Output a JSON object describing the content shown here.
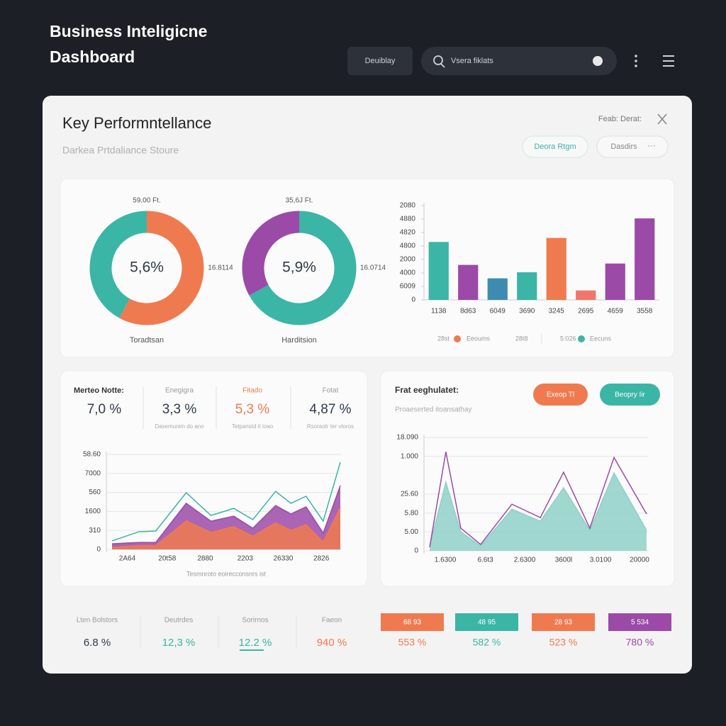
{
  "header": {
    "title_lines": [
      "Business Inteligicne",
      "Dashboard"
    ],
    "button": "Deuiblay",
    "search": "Vsera fiklats"
  },
  "panel": {
    "title": "Key Performntellance",
    "subtitle": "Darkea Prtdaliance Stoure",
    "top_right": "Feab: Derat:",
    "buttons": [
      "Deora Rtgm",
      "Dasdirs"
    ]
  },
  "chart_data": [
    {
      "type": "pie",
      "label": "59.00 Ft.",
      "center_label": "5,6%",
      "side_label": "16.8114",
      "caption": "Toradtsan",
      "values": [
        58,
        42
      ],
      "colors": [
        "#f07a4f",
        "#3bb5a5"
      ]
    },
    {
      "type": "pie",
      "label": "35,6J Ft.",
      "center_label": "5,9%",
      "side_label": "16.0714",
      "caption": "Harditsion",
      "values": [
        67,
        33
      ],
      "colors": [
        "#3bb5a5",
        "#9b4aa8"
      ]
    },
    {
      "type": "bar",
      "categories": [
        "1138",
        "8d63",
        "6049",
        "3690",
        "3245",
        "2695",
        "4659",
        "3558"
      ],
      "values": [
        4.3,
        2.6,
        1.6,
        2.05,
        4.6,
        0.7,
        2.7,
        6.05
      ],
      "colors": [
        "#3bb5a5",
        "#9b4aa8",
        "#3d8bb0",
        "#3bb5a5",
        "#f07a4f",
        "#f0756a",
        "#9b4aa8",
        "#9b4aa8"
      ],
      "ylim": [
        0,
        7
      ],
      "yticks": [
        {
          "value": 7,
          "label": "2080"
        },
        {
          "value": 6,
          "label": "4880"
        },
        {
          "value": 5,
          "label": "4820"
        },
        {
          "value": 4,
          "label": "4800"
        },
        {
          "value": 3,
          "label": "2000"
        },
        {
          "value": 2,
          "label": "4000"
        },
        {
          "value": 1,
          "label": "6009"
        },
        0
      ],
      "legend": [
        {
          "label": "28st"
        },
        {
          "label": "Eeoums",
          "color": "#f07a4f"
        },
        {
          "label": "28t8"
        },
        {
          "label": "5:026"
        },
        {
          "label": "Eecuns",
          "color": "#3bb5a5"
        }
      ]
    },
    {
      "type": "area",
      "caption": "Tesmnroto eoirecconsnrs ist",
      "x": [
        0,
        1.4,
        2.3,
        3.9,
        5.2,
        6.4,
        7.4,
        8.6,
        9.4,
        10.2,
        11.1,
        12
      ],
      "xlim": [
        0,
        12
      ],
      "xticks": [
        {
          "value": 0.8,
          "label": "2A64"
        },
        {
          "value": 2.9,
          "label": "20t58"
        },
        {
          "value": 4.9,
          "label": "2880"
        },
        {
          "value": 7,
          "label": "2203"
        },
        {
          "value": 9,
          "label": "26330"
        },
        {
          "value": 11,
          "label": "2826"
        }
      ],
      "ylim": [
        0,
        5
      ],
      "yticks": [
        {
          "value": 5,
          "label": "58.60"
        },
        {
          "value": 4,
          "label": "7000"
        },
        {
          "value": 3,
          "label": "560"
        },
        {
          "value": 2,
          "label": "1600"
        },
        {
          "value": 1,
          "label": "310"
        },
        0
      ],
      "series": [
        {
          "color": "#9b4aa8",
          "fill": true,
          "values": [
            0.3,
            0.37,
            0.37,
            2.43,
            1.49,
            1.75,
            1.12,
            2.31,
            1.87,
            2.24,
            0.86,
            3.36
          ]
        },
        {
          "color": "#f07a4f",
          "fill": true,
          "values": [
            0.1,
            0.2,
            0.2,
            1.5,
            0.9,
            1.2,
            0.7,
            1.4,
            1,
            1.3,
            0.4,
            2.2
          ]
        },
        {
          "color": "#3bb5a5",
          "fill": false,
          "values": [
            0.45,
            0.93,
            0.97,
            2.99,
            1.79,
            2.16,
            1.57,
            3.06,
            2.43,
            2.8,
            1.49,
            4.59
          ]
        }
      ]
    },
    {
      "type": "area",
      "x": [
        0.04,
        0.93,
        1.75,
        2.84,
        4.56,
        6.12,
        7.4,
        8.84,
        10.17,
        11.96
      ],
      "xlim": [
        0,
        12
      ],
      "xticks": [
        {
          "value": 0.9,
          "label": "1.6300"
        },
        {
          "value": 3.1,
          "label": "6.6t3"
        },
        {
          "value": 5.26,
          "label": "2.6300"
        },
        {
          "value": 7.4,
          "label": "3600l"
        },
        {
          "value": 9.43,
          "label": "3.0100"
        },
        {
          "value": 11.57,
          "label": "20000"
        }
      ],
      "ylim": [
        0,
        6
      ],
      "yticks": [
        {
          "value": 6,
          "label": "18.090"
        },
        {
          "value": 5,
          "label": "1.000"
        },
        {
          "value": 3,
          "label": "25.60"
        },
        {
          "value": 2,
          "label": "5.80"
        },
        {
          "value": 1,
          "label": "5.00"
        },
        0
      ],
      "series": [
        {
          "color": "#8fd0c8",
          "fill": true,
          "values": [
            0.26,
            3.63,
            1.01,
            0.26,
            2.2,
            1.57,
            3.34,
            1.09,
            4.12,
            1.09
          ]
        },
        {
          "color": "#9b4aa8",
          "fill": false,
          "values": [
            0.19,
            5.24,
            1.2,
            0.34,
            2.47,
            1.76,
            4.16,
            1.2,
            4.94,
            1.95
          ]
        }
      ]
    }
  ],
  "stats": [
    {
      "label": "Merteo Notte:",
      "value": "7,0 %"
    },
    {
      "label": "Enegigra",
      "value": "3,3 %",
      "sub": "Dasemunim do ano"
    },
    {
      "label": "Fitado",
      "value": "5,3 %",
      "sub": "Tetpanstd it ioao"
    },
    {
      "label": "Fotat",
      "value": "4,87 %",
      "sub": "Rsoraotr ter vtoros"
    }
  ],
  "right_panel": {
    "title": "Frat eeghulatet:",
    "subtitle": "Proaeserted itoansathay",
    "buttons": [
      {
        "label": "Exeop Tl",
        "color": "#f07a4f"
      },
      {
        "label": "Beopry Iir",
        "color": "#3bb5a5"
      }
    ]
  },
  "bottom_stats": [
    {
      "label": "Lten Bolstors",
      "value": "6.8 %",
      "color": "#2f3a4a"
    },
    {
      "label": "Deutrdes",
      "value": "12,3 %",
      "color": "#3bb5a5"
    },
    {
      "label": "Sorirnos",
      "value": "12.2 %",
      "color": "#3bb5a5"
    },
    {
      "label": "Faeon",
      "value": "940 %",
      "color": "#f07a4f"
    }
  ],
  "tags": [
    {
      "label": "68 93",
      "value": "553 %",
      "color": "#f07a4f"
    },
    {
      "label": "48 95",
      "value": "582 %",
      "color": "#3bb5a5"
    },
    {
      "label": "28 93",
      "value": "523 %",
      "color": "#f07a4f"
    },
    {
      "label": "5 534",
      "value": "780 %",
      "color": "#9b4aa8"
    }
  ]
}
